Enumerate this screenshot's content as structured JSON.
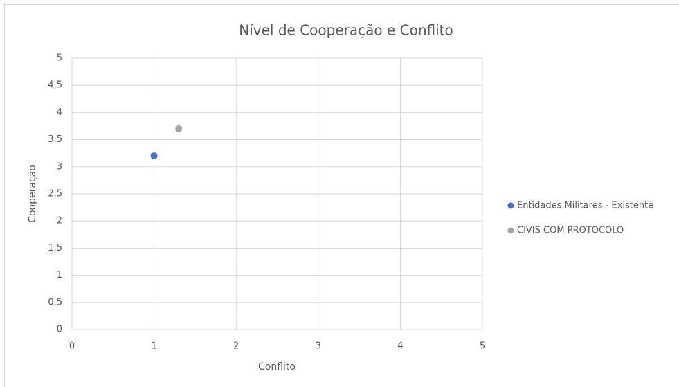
{
  "chart_data": {
    "type": "scatter",
    "title": "Nível de Cooperação e Conflito",
    "x_label": "Conflito",
    "y_label": "Cooperação",
    "series": [
      {
        "name": "Entidades Militares - Existente",
        "color": "#4472c4",
        "x": [
          1
        ],
        "values": [
          3.2
        ]
      },
      {
        "name": "CIVIS COM PROTOCOLO",
        "color": "#a5a5a5",
        "x": [
          1.3
        ],
        "values": [
          3.7
        ]
      }
    ],
    "xlim": [
      0,
      5
    ],
    "xticks": [
      0,
      1,
      2,
      3,
      4,
      5
    ],
    "ylim": [
      0,
      5
    ],
    "yticks": [
      0,
      {
        "value": 0.5,
        "label": "0,5"
      },
      1,
      {
        "value": 1.5,
        "label": "1,5"
      },
      2,
      {
        "value": 2.5,
        "label": "2,5"
      },
      3,
      {
        "value": 3.5,
        "label": "3,5"
      },
      4,
      {
        "value": 4.5,
        "label": "4,5"
      },
      5
    ],
    "grid": true,
    "legend": "right"
  }
}
